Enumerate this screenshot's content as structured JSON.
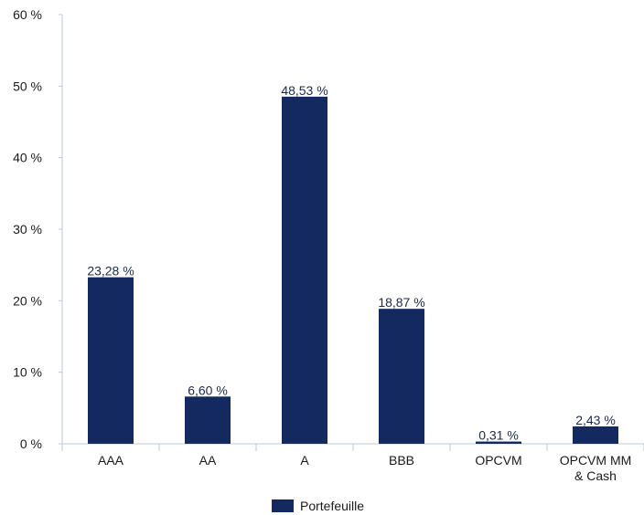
{
  "chart_data": {
    "type": "bar",
    "categories": [
      "AAA",
      "AA",
      "A",
      "BBB",
      "OPCVM",
      "OPCVM MM\n& Cash"
    ],
    "series": [
      {
        "name": "Portefeuille",
        "values": [
          23.28,
          6.6,
          48.53,
          18.87,
          0.31,
          2.43
        ],
        "labels": [
          "23,28 %",
          "6,60 %",
          "48,53 %",
          "18,87 %",
          "0,31 %",
          "2,43 %"
        ],
        "color": "#13295f"
      }
    ],
    "ylim": [
      0,
      60
    ],
    "yticks": [
      "0 %",
      "10 %",
      "20 %",
      "30 %",
      "40 %",
      "50 %",
      "60 %"
    ],
    "xlabel": "",
    "ylabel": "",
    "title": "",
    "grid": false,
    "legend_position": "bottom",
    "axis_color": "#b8c8dc"
  }
}
